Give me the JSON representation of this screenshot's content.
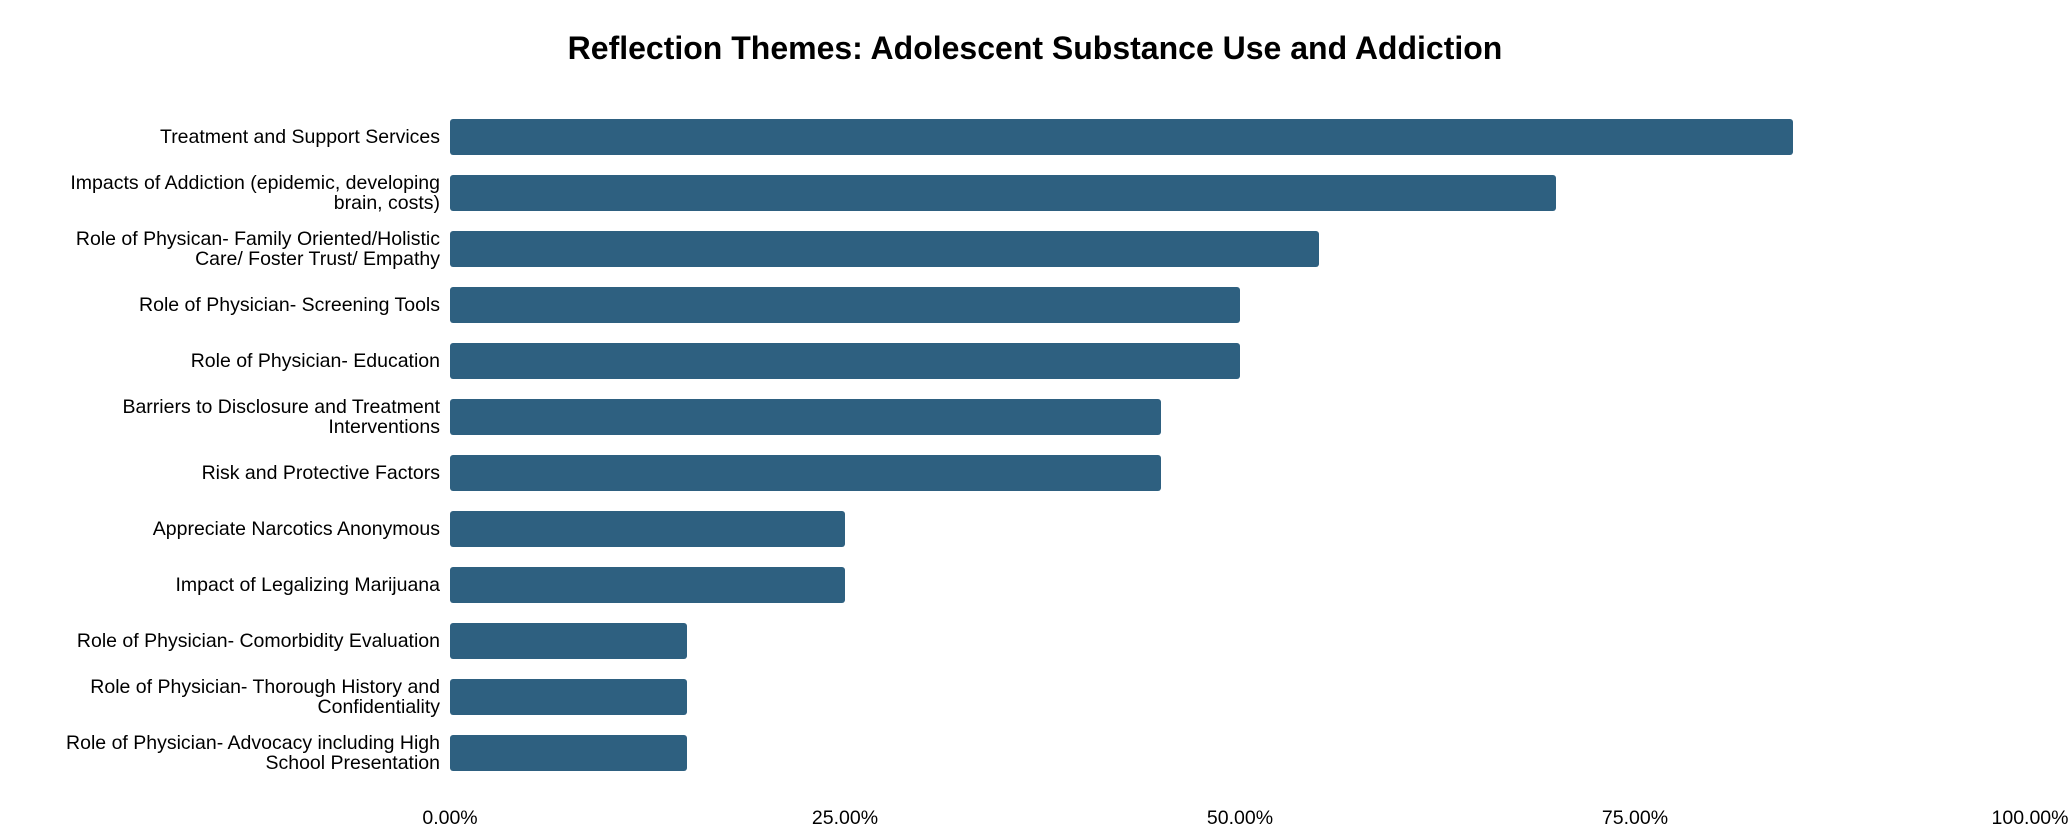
{
  "chart_data": {
    "type": "bar",
    "orientation": "horizontal",
    "title": "Reflection Themes: Adolescent Substance Use and Addiction",
    "xlabel": "",
    "ylabel": "",
    "xlim": [
      0,
      100
    ],
    "grid": false,
    "bar_color": "#2e6080",
    "categories": [
      [
        "Treatment and Support Services"
      ],
      [
        "Impacts of Addiction (epidemic, developing",
        "brain, costs)"
      ],
      [
        "Role of Physican- Family Oriented/Holistic",
        "Care/ Foster Trust/ Empathy"
      ],
      [
        "Role of Physician- Screening Tools"
      ],
      [
        "Role of Physician- Education"
      ],
      [
        "Barriers to Disclosure and Treatment",
        "Interventions"
      ],
      [
        "Risk and Protective Factors"
      ],
      [
        "Appreciate Narcotics Anonymous"
      ],
      [
        "Impact of Legalizing Marijuana"
      ],
      [
        "Role of Physician- Comorbidity Evaluation"
      ],
      [
        "Role of Physician- Thorough History and",
        "Confidentiality"
      ],
      [
        "Role of Physician- Advocacy including High",
        "School Presentation"
      ]
    ],
    "values": [
      85,
      70,
      55,
      50,
      50,
      45,
      45,
      25,
      25,
      15,
      15,
      15
    ],
    "ticks": [
      0,
      25,
      50,
      75,
      100
    ],
    "tick_labels": [
      "0.00%",
      "25.00%",
      "50.00%",
      "75.00%",
      "100.00%"
    ]
  }
}
